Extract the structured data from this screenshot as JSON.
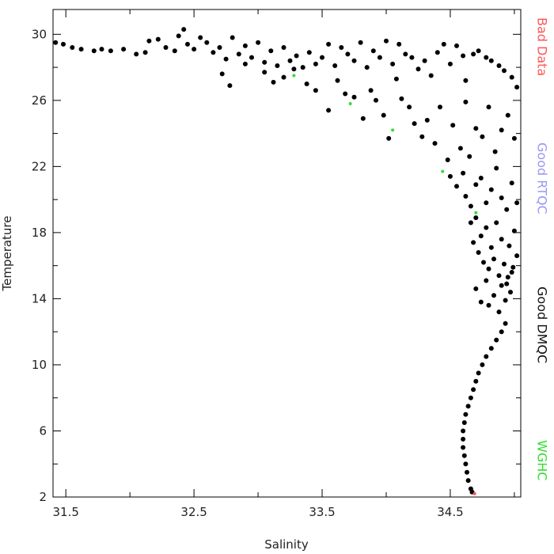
{
  "chart_data": {
    "type": "scatter",
    "title": "",
    "xlabel": "Salinity",
    "ylabel": "Temperature",
    "xlim": [
      31.4,
      35.05
    ],
    "ylim": [
      2,
      31.5
    ],
    "x_ticks": [
      31.5,
      32.5,
      33.5,
      34.5
    ],
    "x_tick_labels": [
      "31.5",
      "32.5",
      "33.5",
      "34.5"
    ],
    "y_ticks": [
      2,
      6,
      10,
      14,
      18,
      22,
      26,
      30
    ],
    "y_tick_labels": [
      "2",
      "6",
      "10",
      "14",
      "18",
      "22",
      "26",
      "30"
    ],
    "grid": false,
    "legend_position": "right-vertical",
    "legend": [
      {
        "label": "Bad Data",
        "color": "#ff5555"
      },
      {
        "label": "Good RTQC",
        "color": "#9999ee"
      },
      {
        "label": "Good DMQC",
        "color": "#111111"
      },
      {
        "label": "WGHC",
        "color": "#33dd33"
      }
    ],
    "series": [
      {
        "name": "Good DMQC",
        "color": "#000000",
        "points": [
          [
            31.42,
            29.5
          ],
          [
            31.48,
            29.4
          ],
          [
            31.55,
            29.2
          ],
          [
            31.62,
            29.1
          ],
          [
            31.72,
            29.0
          ],
          [
            31.78,
            29.1
          ],
          [
            31.85,
            29.0
          ],
          [
            31.95,
            29.1
          ],
          [
            32.05,
            28.8
          ],
          [
            32.12,
            28.9
          ],
          [
            32.15,
            29.6
          ],
          [
            32.22,
            29.7
          ],
          [
            32.28,
            29.2
          ],
          [
            32.35,
            29.0
          ],
          [
            32.38,
            29.9
          ],
          [
            32.42,
            30.3
          ],
          [
            32.45,
            29.4
          ],
          [
            32.5,
            29.1
          ],
          [
            32.55,
            29.8
          ],
          [
            32.6,
            29.5
          ],
          [
            32.65,
            28.9
          ],
          [
            32.7,
            29.2
          ],
          [
            32.75,
            28.5
          ],
          [
            32.8,
            29.8
          ],
          [
            32.85,
            28.8
          ],
          [
            32.9,
            29.3
          ],
          [
            32.95,
            28.6
          ],
          [
            33.0,
            29.5
          ],
          [
            33.05,
            28.3
          ],
          [
            33.1,
            29.0
          ],
          [
            33.15,
            28.1
          ],
          [
            33.2,
            29.2
          ],
          [
            33.25,
            28.4
          ],
          [
            33.3,
            28.7
          ],
          [
            33.35,
            28.0
          ],
          [
            33.4,
            28.9
          ],
          [
            33.45,
            28.2
          ],
          [
            33.5,
            28.6
          ],
          [
            33.55,
            29.4
          ],
          [
            33.6,
            28.1
          ],
          [
            33.65,
            29.2
          ],
          [
            33.7,
            28.8
          ],
          [
            33.75,
            28.4
          ],
          [
            33.8,
            29.5
          ],
          [
            33.85,
            28.0
          ],
          [
            33.9,
            29.0
          ],
          [
            33.95,
            28.6
          ],
          [
            34.0,
            29.6
          ],
          [
            34.05,
            28.2
          ],
          [
            34.1,
            29.4
          ],
          [
            34.15,
            28.8
          ],
          [
            34.2,
            28.6
          ],
          [
            34.25,
            27.9
          ],
          [
            34.3,
            28.4
          ],
          [
            34.35,
            27.5
          ],
          [
            34.4,
            28.9
          ],
          [
            34.45,
            29.4
          ],
          [
            34.5,
            28.2
          ],
          [
            34.55,
            29.3
          ],
          [
            34.6,
            28.7
          ],
          [
            34.62,
            27.2
          ],
          [
            34.68,
            28.8
          ],
          [
            34.72,
            29.0
          ],
          [
            34.78,
            28.6
          ],
          [
            34.82,
            28.4
          ],
          [
            34.88,
            28.1
          ],
          [
            34.92,
            27.8
          ],
          [
            34.98,
            27.4
          ],
          [
            35.02,
            26.8
          ],
          [
            32.72,
            27.6
          ],
          [
            32.78,
            26.9
          ],
          [
            32.9,
            28.2
          ],
          [
            33.05,
            27.7
          ],
          [
            33.12,
            27.1
          ],
          [
            33.2,
            27.4
          ],
          [
            33.28,
            27.9
          ],
          [
            33.38,
            27.0
          ],
          [
            33.45,
            26.6
          ],
          [
            33.55,
            25.4
          ],
          [
            33.62,
            27.2
          ],
          [
            33.68,
            26.4
          ],
          [
            33.75,
            26.2
          ],
          [
            33.82,
            24.9
          ],
          [
            33.88,
            26.6
          ],
          [
            33.92,
            26.0
          ],
          [
            33.98,
            25.1
          ],
          [
            34.02,
            23.7
          ],
          [
            34.08,
            27.3
          ],
          [
            34.12,
            26.1
          ],
          [
            34.18,
            25.6
          ],
          [
            34.22,
            24.6
          ],
          [
            34.28,
            23.8
          ],
          [
            34.32,
            24.8
          ],
          [
            34.38,
            23.4
          ],
          [
            34.42,
            25.6
          ],
          [
            34.48,
            22.4
          ],
          [
            34.52,
            24.5
          ],
          [
            34.58,
            23.1
          ],
          [
            34.62,
            25.9
          ],
          [
            34.65,
            22.6
          ],
          [
            34.7,
            24.3
          ],
          [
            34.75,
            23.8
          ],
          [
            34.8,
            25.6
          ],
          [
            34.85,
            22.9
          ],
          [
            34.9,
            24.2
          ],
          [
            34.95,
            25.1
          ],
          [
            35.0,
            23.7
          ],
          [
            34.5,
            21.4
          ],
          [
            34.55,
            20.8
          ],
          [
            34.6,
            21.6
          ],
          [
            34.62,
            20.2
          ],
          [
            34.66,
            19.6
          ],
          [
            34.7,
            20.9
          ],
          [
            34.74,
            21.3
          ],
          [
            34.78,
            19.8
          ],
          [
            34.82,
            20.6
          ],
          [
            34.86,
            21.9
          ],
          [
            34.9,
            20.1
          ],
          [
            34.94,
            19.4
          ],
          [
            34.98,
            21.0
          ],
          [
            35.02,
            19.8
          ],
          [
            34.66,
            18.6
          ],
          [
            34.68,
            17.4
          ],
          [
            34.7,
            18.9
          ],
          [
            34.72,
            16.8
          ],
          [
            34.74,
            17.8
          ],
          [
            34.76,
            16.2
          ],
          [
            34.78,
            18.3
          ],
          [
            34.8,
            15.8
          ],
          [
            34.82,
            17.1
          ],
          [
            34.84,
            16.4
          ],
          [
            34.86,
            18.6
          ],
          [
            34.88,
            15.4
          ],
          [
            34.9,
            17.6
          ],
          [
            34.92,
            16.1
          ],
          [
            34.94,
            14.9
          ],
          [
            34.96,
            17.2
          ],
          [
            34.98,
            15.6
          ],
          [
            35.0,
            18.1
          ],
          [
            35.02,
            16.6
          ],
          [
            34.7,
            14.6
          ],
          [
            34.74,
            13.8
          ],
          [
            34.78,
            15.1
          ],
          [
            34.8,
            13.6
          ],
          [
            34.84,
            14.2
          ],
          [
            34.88,
            13.2
          ],
          [
            34.9,
            14.8
          ],
          [
            34.93,
            13.9
          ],
          [
            34.95,
            15.3
          ],
          [
            34.97,
            14.4
          ],
          [
            34.99,
            15.9
          ],
          [
            34.93,
            12.5
          ],
          [
            34.9,
            12.0
          ],
          [
            34.86,
            11.5
          ],
          [
            34.82,
            11.0
          ],
          [
            34.78,
            10.5
          ],
          [
            34.75,
            10.0
          ],
          [
            34.72,
            9.5
          ],
          [
            34.7,
            9.0
          ],
          [
            34.68,
            8.5
          ],
          [
            34.66,
            8.0
          ],
          [
            34.64,
            7.5
          ],
          [
            34.62,
            7.0
          ],
          [
            34.61,
            6.5
          ],
          [
            34.6,
            6.0
          ],
          [
            34.6,
            5.5
          ],
          [
            34.6,
            5.0
          ],
          [
            34.61,
            4.5
          ],
          [
            34.62,
            4.0
          ],
          [
            34.63,
            3.5
          ],
          [
            34.64,
            3.0
          ],
          [
            34.66,
            2.5
          ],
          [
            34.67,
            2.3
          ]
        ]
      },
      {
        "name": "WGHC",
        "color": "#33dd33",
        "points": [
          [
            33.28,
            27.5
          ],
          [
            33.72,
            25.8
          ],
          [
            34.05,
            24.2
          ],
          [
            34.44,
            21.7
          ],
          [
            34.7,
            19.2
          ]
        ]
      },
      {
        "name": "Bad Data",
        "color": "#ff5555",
        "points": [
          [
            34.69,
            2.2
          ]
        ]
      }
    ]
  }
}
